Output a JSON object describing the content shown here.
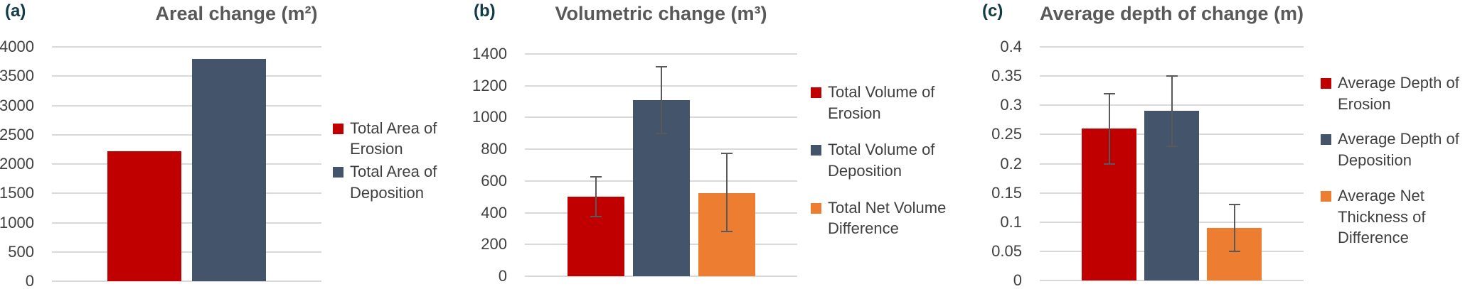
{
  "palette": {
    "erosion_red": "#C00000",
    "deposition_blue": "#44546A",
    "difference_orange": "#ED7D31",
    "title_gray": "#595959",
    "panel_label_teal": "#113B46",
    "tick_label_gray": "#404040",
    "gridline_gray": "#D9D9D9",
    "error_bar_gray": "#595959"
  },
  "chart_data": [
    {
      "type": "bar",
      "panel_label": "(a)",
      "title": "Areal change (m²)",
      "xlabel": "",
      "ylabel": "",
      "ylim": [
        0,
        4000
      ],
      "ytick_values": [
        0,
        500,
        1000,
        1500,
        2000,
        2500,
        3000,
        3500,
        4000
      ],
      "ytick_labels": [
        "0",
        "500",
        "1000",
        "1500",
        "2000",
        "2500",
        "3000",
        "3500",
        "4000"
      ],
      "grid": true,
      "legend_position": "right",
      "series": [
        {
          "name": "Total Area of Erosion",
          "value": 2220,
          "color": "#C00000",
          "error": null
        },
        {
          "name": "Total Area of Deposition",
          "value": 3800,
          "color": "#44546A",
          "error": null
        }
      ]
    },
    {
      "type": "bar",
      "panel_label": "(b)",
      "title": "Volumetric change (m³)",
      "xlabel": "",
      "ylabel": "",
      "ylim": [
        0,
        1400
      ],
      "ytick_values": [
        0,
        200,
        400,
        600,
        800,
        1000,
        1200,
        1400
      ],
      "ytick_labels": [
        "0",
        "200",
        "400",
        "600",
        "800",
        "1000",
        "1200",
        "1400"
      ],
      "grid": true,
      "legend_position": "right",
      "series": [
        {
          "name": "Total Volume of Erosion",
          "value": 500,
          "color": "#C00000",
          "error": [
            375,
            625
          ]
        },
        {
          "name": "Total Volume of Deposition",
          "value": 1110,
          "color": "#44546A",
          "error": [
            900,
            1320
          ]
        },
        {
          "name": "Total Net Volume Difference",
          "value": 525,
          "color": "#ED7D31",
          "error": [
            280,
            775
          ]
        }
      ]
    },
    {
      "type": "bar",
      "panel_label": "(c)",
      "title": "Average depth of change (m)",
      "xlabel": "",
      "ylabel": "",
      "ylim": [
        0,
        0.4
      ],
      "ytick_values": [
        0,
        0.05,
        0.1,
        0.15,
        0.2,
        0.25,
        0.3,
        0.35,
        0.4
      ],
      "ytick_labels": [
        "0",
        "0.05",
        "0.1",
        "0.15",
        "0.2",
        "0.25",
        "0.3",
        "0.35",
        "0.4"
      ],
      "grid": true,
      "legend_position": "right",
      "series": [
        {
          "name": "Average Depth of Erosion",
          "value": 0.26,
          "color": "#C00000",
          "error": [
            0.2,
            0.32
          ]
        },
        {
          "name": "Average Depth of Deposition",
          "value": 0.29,
          "color": "#44546A",
          "error": [
            0.23,
            0.35
          ]
        },
        {
          "name": "Average Net Thickness of Difference",
          "value": 0.09,
          "color": "#ED7D31",
          "error": [
            0.05,
            0.13
          ]
        }
      ]
    }
  ]
}
